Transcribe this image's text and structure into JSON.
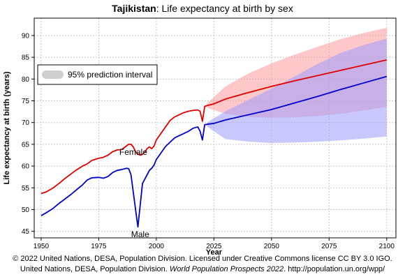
{
  "chart_data": {
    "type": "line",
    "title_bold": "Tajikistan",
    "title_rest": ": Life expectancy at birth by sex",
    "xlabel": "Year",
    "ylabel": "Life expectancy at birth (years)",
    "xlim": [
      1947,
      2104
    ],
    "ylim": [
      43.5,
      94
    ],
    "xticks": [
      1950,
      1975,
      2000,
      2025,
      2050,
      2075,
      2100
    ],
    "yticks": [
      45,
      50,
      55,
      60,
      65,
      70,
      75,
      80,
      85,
      90
    ],
    "grid": true,
    "legend_position": "top-left",
    "legend_label": "95% prediction interval",
    "annotations": [
      {
        "text": "Female",
        "x": 1990,
        "y": 63.2
      },
      {
        "text": "Male",
        "x": 1993,
        "y": 44.3
      }
    ],
    "series": [
      {
        "name": "Female",
        "color": "#e00000",
        "x": [
          1950,
          1952,
          1955,
          1958,
          1960,
          1963,
          1965,
          1968,
          1970,
          1972,
          1975,
          1977,
          1979,
          1981,
          1983,
          1985,
          1987,
          1988,
          1989,
          1990,
          1991,
          1992,
          1993,
          1994,
          1995,
          1996,
          1997,
          1998,
          1999,
          2000,
          2002,
          2004,
          2006,
          2008,
          2010,
          2012,
          2014,
          2016,
          2018,
          2019,
          2020,
          2021,
          2022,
          2025,
          2030,
          2040,
          2050,
          2060,
          2070,
          2080,
          2090,
          2100
        ],
        "y": [
          53.7,
          54.0,
          54.9,
          56.1,
          57.0,
          58.2,
          59.0,
          60.0,
          60.5,
          61.3,
          61.8,
          62.0,
          62.5,
          63.3,
          63.7,
          63.8,
          64.6,
          65.0,
          65.0,
          64.4,
          63.3,
          62.8,
          62.5,
          62.7,
          63.2,
          64.0,
          64.4,
          64.0,
          64.6,
          66.0,
          67.5,
          69.0,
          70.5,
          71.3,
          71.8,
          72.3,
          72.6,
          72.8,
          72.9,
          72.6,
          70.3,
          73.7,
          73.9,
          74.3,
          75.4,
          76.9,
          78.3,
          79.6,
          80.8,
          82.0,
          83.2,
          84.4
        ]
      },
      {
        "name": "Male",
        "color": "#0000cc",
        "x": [
          1950,
          1952,
          1955,
          1958,
          1960,
          1963,
          1965,
          1968,
          1970,
          1972,
          1975,
          1977,
          1979,
          1981,
          1983,
          1985,
          1987,
          1988,
          1989,
          1990,
          1991,
          1992,
          1993,
          1994,
          1995,
          1996,
          1997,
          1998,
          1999,
          2000,
          2002,
          2004,
          2006,
          2008,
          2010,
          2012,
          2014,
          2016,
          2018,
          2019,
          2020,
          2021,
          2022,
          2025,
          2030,
          2040,
          2050,
          2060,
          2070,
          2080,
          2090,
          2100
        ],
        "y": [
          48.6,
          49.2,
          50.2,
          51.5,
          52.3,
          53.5,
          54.4,
          55.7,
          56.8,
          57.3,
          57.4,
          57.2,
          57.6,
          58.5,
          59.0,
          59.2,
          59.5,
          59.4,
          58.0,
          54.0,
          50.0,
          46.0,
          51.0,
          56.0,
          57.0,
          58.0,
          59.0,
          59.5,
          60.2,
          61.5,
          63.0,
          64.5,
          65.5,
          66.5,
          67.0,
          67.5,
          68.0,
          68.7,
          69.0,
          68.0,
          66.0,
          69.5,
          69.6,
          69.8,
          70.6,
          71.8,
          73.0,
          74.5,
          76.0,
          77.6,
          79.1,
          80.6
        ]
      }
    ],
    "prediction_intervals": [
      {
        "name": "Female 95% prediction interval",
        "color": "#ff9a9a",
        "x": [
          2022,
          2030,
          2040,
          2050,
          2060,
          2070,
          2080,
          2090,
          2100
        ],
        "lower": [
          73.4,
          72.0,
          71.3,
          71.1,
          71.2,
          71.5,
          72.0,
          72.8,
          73.6
        ],
        "upper": [
          74.4,
          78.3,
          81.3,
          83.6,
          85.6,
          87.4,
          89.2,
          90.6,
          91.8
        ]
      },
      {
        "name": "Male 95% prediction interval",
        "color": "#9a9aff",
        "x": [
          2022,
          2030,
          2040,
          2050,
          2060,
          2070,
          2080,
          2090,
          2100
        ],
        "lower": [
          69.1,
          66.2,
          65.6,
          65.3,
          65.4,
          65.6,
          65.9,
          66.3,
          66.8
        ],
        "upper": [
          70.0,
          72.6,
          75.2,
          77.8,
          80.6,
          83.5,
          86.0,
          87.8,
          89.3
        ]
      }
    ]
  },
  "credits": {
    "line1": "© 2022 United Nations, DESA, Population Division. Licensed under Creative Commons license CC BY 3.0 IGO.",
    "line2_a": "United Nations, DESA, Population Division.",
    "line2_italic": "World Population Prospects 2022",
    "line2_b": ". http://population.un.org/wpp/"
  }
}
